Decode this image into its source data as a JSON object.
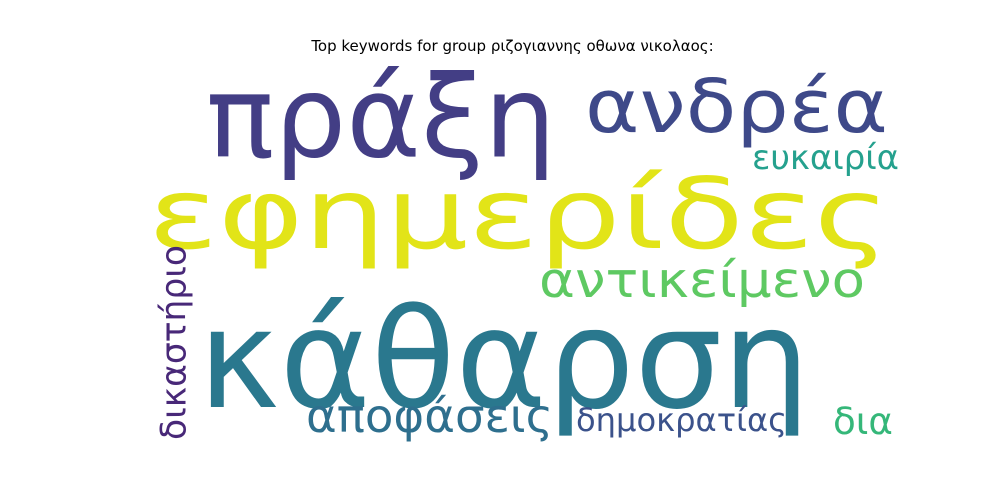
{
  "chart_data": {
    "type": "wordcloud",
    "title": "Top keywords for group ριζογιαννης οθωνα νικολαος:",
    "words": [
      {
        "text": "εφημερίδες",
        "color": "#e2e418"
      },
      {
        "text": "κάθαρση",
        "color": "#2a788e"
      },
      {
        "text": "πράξη",
        "color": "#433e85"
      },
      {
        "text": "ανδρέα",
        "color": "#3e4989"
      },
      {
        "text": "αντικείμενο",
        "color": "#5ec962"
      },
      {
        "text": "ευκαιρία",
        "color": "#25a18e"
      },
      {
        "text": "αποφάσεις",
        "color": "#2e6f8e"
      },
      {
        "text": "δημοκρατίας",
        "color": "#3b528b"
      },
      {
        "text": "δικαστήριο",
        "color": "#482878"
      },
      {
        "text": "δια",
        "color": "#35b779"
      }
    ]
  }
}
